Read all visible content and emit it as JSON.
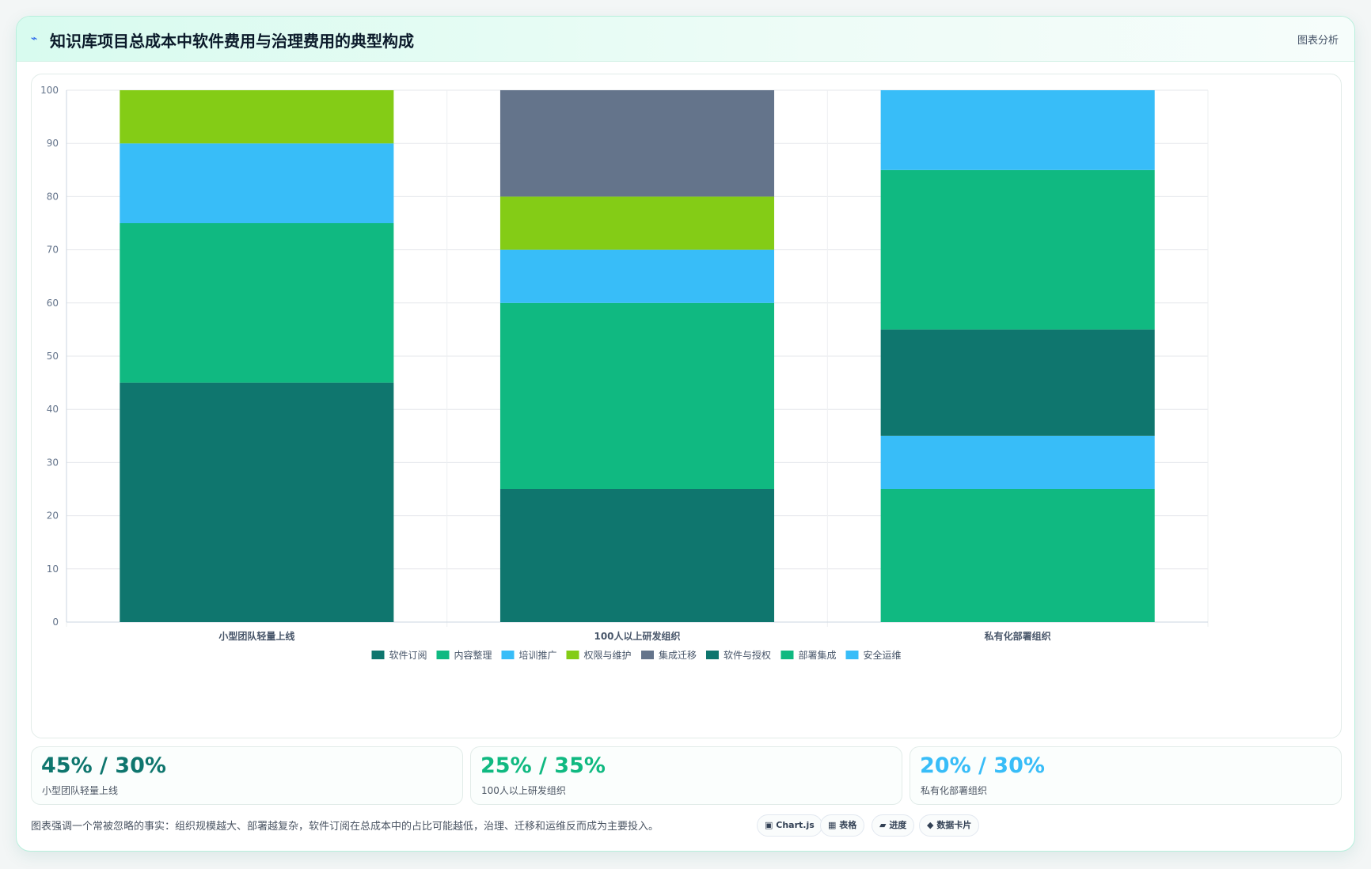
{
  "header": {
    "icon": "⌁",
    "title": "知识库项目总成本中软件费用与治理费用的典型构成",
    "tag": "图表分析"
  },
  "chart_data": {
    "type": "bar",
    "stacked": true,
    "categories": [
      "小型团队轻量上线",
      "100人以上研发组织",
      "私有化部署组织"
    ],
    "ylim": [
      0,
      100
    ],
    "yticks": [
      0,
      10,
      20,
      30,
      40,
      50,
      60,
      70,
      80,
      90,
      100
    ],
    "grid": true,
    "legend_position": "bottom",
    "series": [
      {
        "name": "软件订阅",
        "color": "#0f766e",
        "values": [
          45,
          25,
          0
        ]
      },
      {
        "name": "内容整理",
        "color": "#10b981",
        "values": [
          30,
          35,
          0
        ]
      },
      {
        "name": "培训推广",
        "color": "#38bdf8",
        "values": [
          15,
          10,
          10
        ]
      },
      {
        "name": "权限与维护",
        "color": "#84cc16",
        "values": [
          10,
          10,
          0
        ]
      },
      {
        "name": "集成迁移",
        "color": "#64748b",
        "values": [
          0,
          20,
          0
        ]
      },
      {
        "name": "软件与授权",
        "color": "#0f766e",
        "values": [
          0,
          0,
          20
        ]
      },
      {
        "name": "部署集成",
        "color": "#10b981",
        "values": [
          0,
          0,
          30
        ]
      },
      {
        "name": "安全运维",
        "color": "#38bdf8",
        "values": [
          0,
          0,
          15
        ]
      }
    ],
    "stack_order_third": [
      "部署集成",
      "培训推广",
      "软件与授权",
      "部署集成",
      "安全运维"
    ]
  },
  "stats": [
    {
      "value": "45% / 30%",
      "label": "小型团队轻量上线",
      "color": "#0f766e"
    },
    {
      "value": "25% / 35%",
      "label": "100人以上研发组织",
      "color": "#10b981"
    },
    {
      "value": "20% / 30%",
      "label": "私有化部署组织",
      "color": "#38bdf8"
    }
  ],
  "note": "图表强调一个常被忽略的事实：组织规模越大、部署越复杂，软件订阅在总成本中的占比可能越低，治理、迁移和运维反而成为主要投入。",
  "chips": [
    {
      "icon": "▣",
      "label": "Chart.js"
    },
    {
      "icon": "▦",
      "label": "表格"
    },
    {
      "icon": "▰",
      "label": "进度"
    },
    {
      "icon": "◆",
      "label": "数据卡片"
    }
  ]
}
